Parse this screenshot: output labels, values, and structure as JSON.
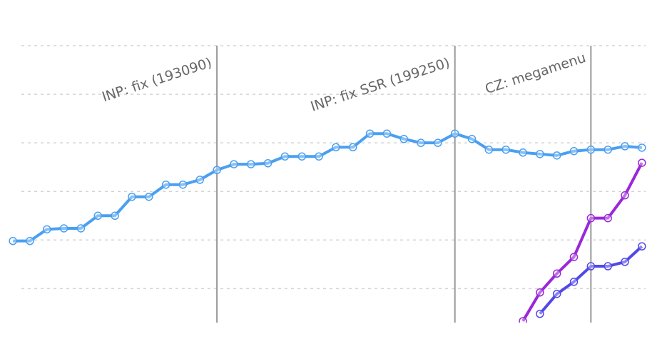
{
  "chart_data": {
    "type": "line",
    "x": [
      0,
      1,
      2,
      3,
      4,
      5,
      6,
      7,
      8,
      9,
      10,
      11,
      12,
      13,
      14,
      15,
      16,
      17,
      18,
      19,
      20,
      21,
      22,
      23,
      24,
      25,
      26,
      27,
      28,
      29,
      30,
      31,
      32,
      33,
      34,
      35,
      36,
      37
    ],
    "xlim": [
      -0.76,
      38.77
    ],
    "ylim": [
      0.3,
      6.5
    ],
    "yticks": [
      1,
      2,
      3,
      4,
      5,
      6
    ],
    "grid": true,
    "series": [
      {
        "color": "#4a9ff0",
        "values": [
          1.98,
          1.98,
          2.22,
          2.24,
          2.24,
          2.5,
          2.5,
          2.89,
          2.89,
          3.14,
          3.14,
          3.24,
          3.44,
          3.56,
          3.56,
          3.58,
          3.72,
          3.72,
          3.72,
          3.91,
          3.91,
          4.19,
          4.19,
          4.08,
          4.0,
          4.0,
          4.19,
          4.08,
          3.86,
          3.86,
          3.8,
          3.77,
          3.74,
          3.83,
          3.86,
          3.86,
          3.93,
          3.9
        ]
      },
      {
        "color": "#9a28d8",
        "values": [
          null,
          null,
          null,
          null,
          null,
          null,
          null,
          null,
          null,
          null,
          null,
          null,
          null,
          null,
          null,
          null,
          null,
          null,
          null,
          null,
          null,
          null,
          null,
          null,
          null,
          null,
          null,
          null,
          null,
          null,
          0.33,
          0.92,
          1.31,
          1.65,
          2.45,
          2.45,
          2.92,
          3.59
        ]
      },
      {
        "color": "#5248e6",
        "values": [
          null,
          null,
          null,
          null,
          null,
          null,
          null,
          null,
          null,
          null,
          null,
          null,
          null,
          null,
          null,
          null,
          null,
          null,
          null,
          null,
          null,
          null,
          null,
          null,
          null,
          null,
          null,
          null,
          null,
          null,
          null,
          0.48,
          0.89,
          1.14,
          1.46,
          1.46,
          1.55,
          1.87
        ]
      }
    ],
    "annotations": [
      {
        "x": 12,
        "text": "INP: fix (193090)"
      },
      {
        "x": 26,
        "text": "INP: fix SSR (199250)"
      },
      {
        "x": 34,
        "text": "CZ: megamenu"
      }
    ]
  }
}
